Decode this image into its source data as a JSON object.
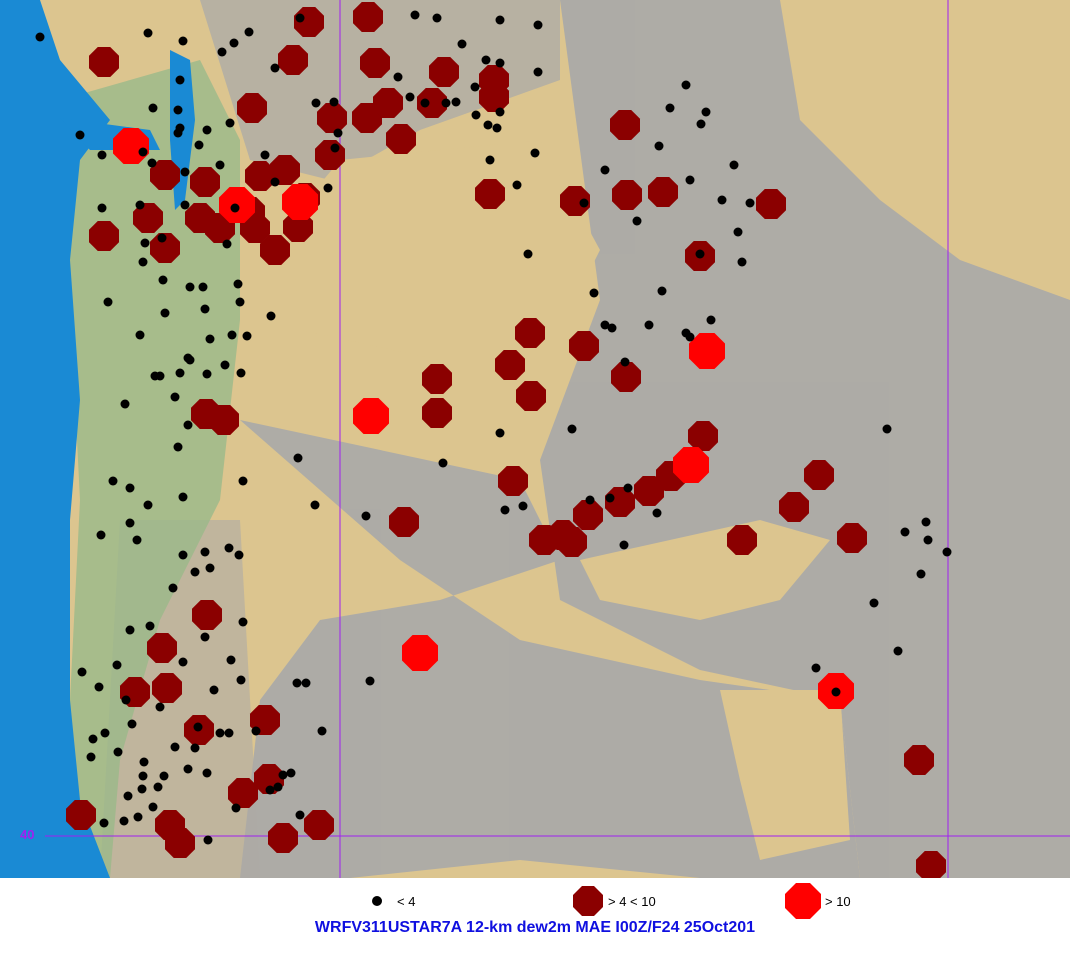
{
  "map": {
    "latitude_label": "40",
    "colors": {
      "ocean": "#1a8ad4",
      "land": "#dcc58f",
      "terrain": "#a8a8a8",
      "grid": "#a020f0",
      "low": "#000000",
      "mid": "#8b0000",
      "high": "#ff0000"
    }
  },
  "legend": [
    {
      "label": "< 4",
      "icon": "black-dot",
      "color": "#000000"
    },
    {
      "label": "> 4 < 10",
      "icon": "dark-red-octagon",
      "color": "#8b0000"
    },
    {
      "label": "> 10",
      "icon": "red-octagon",
      "color": "#ff0000"
    }
  ],
  "title": "WRFV311USTAR7A 12-km dew2m MAE I00Z/F24 25Oct201"
}
